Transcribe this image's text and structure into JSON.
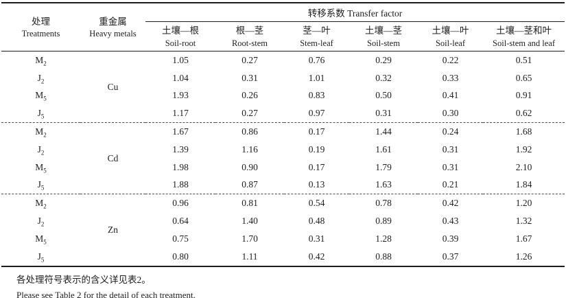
{
  "table": {
    "header": {
      "col1": {
        "zh": "处理",
        "en": "Treatments"
      },
      "col2": {
        "zh": "重金属",
        "en": "Heavy metals"
      },
      "span": "转移系数 Transfer factor",
      "cols": [
        {
          "zh": "土壤—根",
          "en": "Soil-root"
        },
        {
          "zh": "根—茎",
          "en": "Root-stem"
        },
        {
          "zh": "茎—叶",
          "en": "Stem-leaf"
        },
        {
          "zh": "土壤—茎",
          "en": "Soil-stem"
        },
        {
          "zh": "土壤—叶",
          "en": "Soil-leaf"
        },
        {
          "zh": "土壤—茎和叶",
          "en": "Soil-stem and leaf"
        }
      ]
    },
    "groups": [
      {
        "metal": "Cu",
        "rows": [
          {
            "treatment": {
              "base": "M",
              "sub": "2"
            },
            "values": [
              "1.05",
              "0.27",
              "0.76",
              "0.29",
              "0.22",
              "0.51"
            ]
          },
          {
            "treatment": {
              "base": "J",
              "sub": "2"
            },
            "values": [
              "1.04",
              "0.31",
              "1.01",
              "0.32",
              "0.33",
              "0.65"
            ]
          },
          {
            "treatment": {
              "base": "M",
              "sub": "5"
            },
            "values": [
              "1.93",
              "0.26",
              "0.83",
              "0.50",
              "0.41",
              "0.91"
            ]
          },
          {
            "treatment": {
              "base": "J",
              "sub": "5"
            },
            "values": [
              "1.17",
              "0.27",
              "0.97",
              "0.31",
              "0.30",
              "0.62"
            ]
          }
        ]
      },
      {
        "metal": "Cd",
        "rows": [
          {
            "treatment": {
              "base": "M",
              "sub": "2"
            },
            "values": [
              "1.67",
              "0.86",
              "0.17",
              "1.44",
              "0.24",
              "1.68"
            ]
          },
          {
            "treatment": {
              "base": "J",
              "sub": "2"
            },
            "values": [
              "1.39",
              "1.16",
              "0.19",
              "1.61",
              "0.31",
              "1.92"
            ]
          },
          {
            "treatment": {
              "base": "M",
              "sub": "5"
            },
            "values": [
              "1.98",
              "0.90",
              "0.17",
              "1.79",
              "0.31",
              "2.10"
            ]
          },
          {
            "treatment": {
              "base": "J",
              "sub": "5"
            },
            "values": [
              "1.88",
              "0.87",
              "0.13",
              "1.63",
              "0.21",
              "1.84"
            ]
          }
        ]
      },
      {
        "metal": "Zn",
        "rows": [
          {
            "treatment": {
              "base": "M",
              "sub": "2"
            },
            "values": [
              "0.96",
              "0.81",
              "0.54",
              "0.78",
              "0.42",
              "1.20"
            ]
          },
          {
            "treatment": {
              "base": "J",
              "sub": "2"
            },
            "values": [
              "0.64",
              "1.40",
              "0.48",
              "0.89",
              "0.43",
              "1.32"
            ]
          },
          {
            "treatment": {
              "base": "M",
              "sub": "5"
            },
            "values": [
              "0.75",
              "1.70",
              "0.31",
              "1.28",
              "0.39",
              "1.67"
            ]
          },
          {
            "treatment": {
              "base": "J",
              "sub": "5"
            },
            "values": [
              "0.80",
              "1.11",
              "0.42",
              "0.88",
              "0.37",
              "1.26"
            ]
          }
        ]
      }
    ],
    "notes": {
      "zh": "各处理符号表示的含义详见表2。",
      "en": "Please see Table 2 for the detail of each treatment."
    }
  }
}
